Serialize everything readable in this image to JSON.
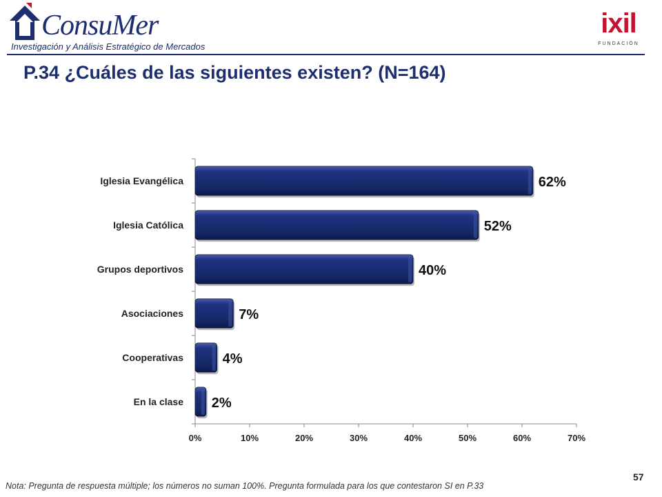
{
  "header": {
    "left_logo": {
      "wordmark": "ConsuMer",
      "tagline": "Investigación y Análisis Estratégico de Mercados"
    },
    "right_logo": {
      "wordmark": "ixil",
      "subtitle": "FUNDACIÓN"
    }
  },
  "colors": {
    "brand": "#1d2d6e",
    "bar": "#17296b",
    "accent": "#c41230"
  },
  "chart_data": {
    "type": "bar",
    "orientation": "horizontal",
    "title": "P.34 ¿Cuáles de las siguientes existen? (N=164)",
    "categories": [
      "Iglesia Evangélica",
      "Iglesia Católica",
      "Grupos deportivos",
      "Asociaciones",
      "Cooperativas",
      "En la clase"
    ],
    "values": [
      62,
      52,
      40,
      7,
      4,
      2
    ],
    "value_labels": [
      "62%",
      "52%",
      "40%",
      "7%",
      "4%",
      "2%"
    ],
    "xlim": [
      0,
      70
    ],
    "xticks": [
      0,
      10,
      20,
      30,
      40,
      50,
      60,
      70
    ],
    "xtick_labels": [
      "0%",
      "10%",
      "20%",
      "30%",
      "40%",
      "50%",
      "60%",
      "70%"
    ],
    "xlabel": "",
    "ylabel": "",
    "grid": false,
    "legend": "none"
  },
  "footer": {
    "note": "Nota: Pregunta de respuesta múltiple; los números no suman 100%. Pregunta formulada para los que contestaron SI en P.33",
    "page_number": "57"
  }
}
